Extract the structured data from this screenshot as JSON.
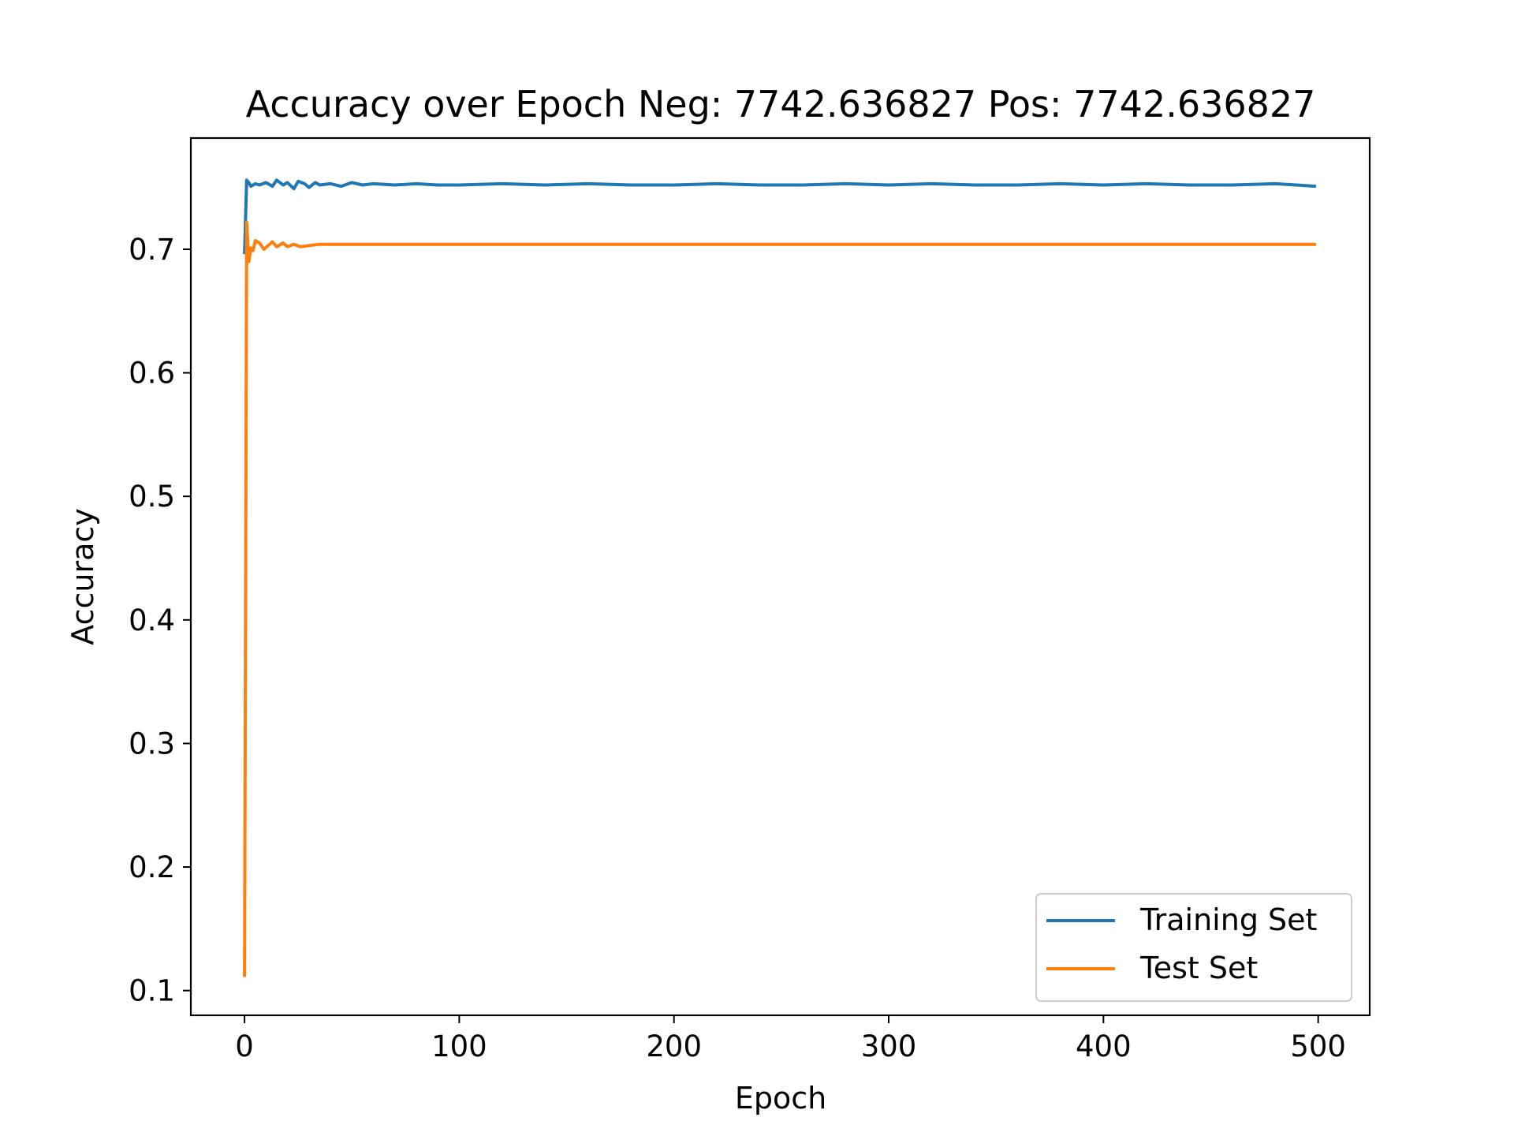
{
  "chart_data": {
    "type": "line",
    "title": "Accuracy over Epoch Neg: 7742.636827 Pos: 7742.636827",
    "xlabel": "Epoch",
    "ylabel": "Accuracy",
    "xlim": [
      -25,
      524
    ],
    "ylim": [
      0.08,
      0.79
    ],
    "xticks": [
      0,
      100,
      200,
      300,
      400,
      500
    ],
    "yticks": [
      0.1,
      0.2,
      0.3,
      0.4,
      0.5,
      0.6,
      0.7
    ],
    "ytick_labels": [
      "0.1",
      "0.2",
      "0.3",
      "0.4",
      "0.5",
      "0.6",
      "0.7"
    ],
    "xtick_labels": [
      "0",
      "100",
      "200",
      "300",
      "400",
      "500"
    ],
    "grid": false,
    "legend_position": "lower right",
    "series": [
      {
        "name": "Training Set",
        "color": "#1f77b4",
        "x": [
          0,
          1,
          2,
          3,
          5,
          7,
          10,
          13,
          15,
          18,
          20,
          23,
          25,
          28,
          30,
          33,
          35,
          40,
          45,
          50,
          55,
          60,
          70,
          80,
          90,
          100,
          120,
          140,
          160,
          180,
          200,
          220,
          240,
          260,
          280,
          300,
          320,
          340,
          360,
          380,
          400,
          420,
          440,
          460,
          480,
          499
        ],
        "y": [
          0.696,
          0.756,
          0.754,
          0.751,
          0.753,
          0.752,
          0.754,
          0.751,
          0.756,
          0.752,
          0.754,
          0.749,
          0.755,
          0.753,
          0.75,
          0.754,
          0.752,
          0.753,
          0.751,
          0.754,
          0.752,
          0.753,
          0.752,
          0.753,
          0.752,
          0.752,
          0.753,
          0.752,
          0.753,
          0.752,
          0.752,
          0.753,
          0.752,
          0.752,
          0.753,
          0.752,
          0.753,
          0.752,
          0.752,
          0.753,
          0.752,
          0.753,
          0.752,
          0.752,
          0.753,
          0.751
        ]
      },
      {
        "name": "Test Set",
        "color": "#ff7f0e",
        "x": [
          0,
          1,
          2,
          3,
          4,
          5,
          7,
          9,
          11,
          13,
          15,
          18,
          20,
          23,
          26,
          30,
          35,
          40,
          50,
          60,
          80,
          100,
          120,
          150,
          200,
          220,
          250,
          300,
          305,
          350,
          400,
          450,
          499
        ],
        "y": [
          0.111,
          0.722,
          0.69,
          0.701,
          0.699,
          0.707,
          0.705,
          0.7,
          0.703,
          0.706,
          0.702,
          0.705,
          0.702,
          0.704,
          0.702,
          0.703,
          0.704,
          0.704,
          0.704,
          0.704,
          0.704,
          0.704,
          0.704,
          0.704,
          0.704,
          0.704,
          0.704,
          0.704,
          0.704,
          0.704,
          0.704,
          0.704,
          0.704
        ]
      }
    ]
  }
}
